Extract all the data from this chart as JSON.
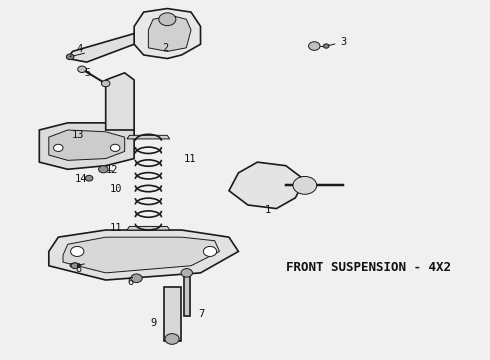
{
  "title": "FRONT SUSPENSION - 4X2",
  "background_color": "#f0f0f0",
  "line_color": "#1a1a1a",
  "text_color": "#111111",
  "label_color": "#222222",
  "title_fontsize": 9,
  "label_fontsize": 7.5,
  "fig_width": 4.9,
  "fig_height": 3.6,
  "dpi": 100
}
